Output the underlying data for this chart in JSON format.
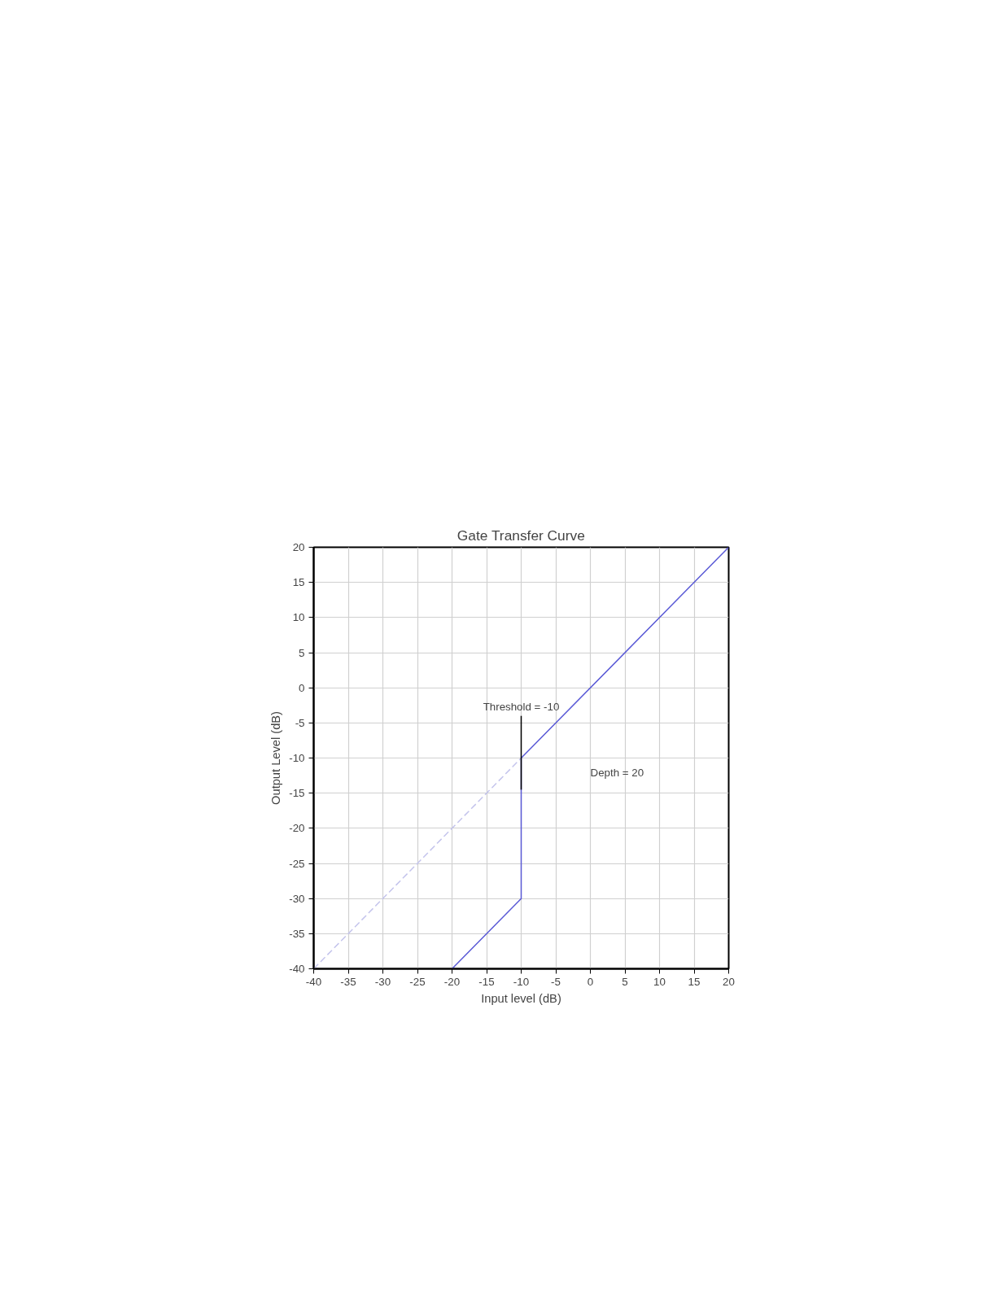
{
  "chart_data": {
    "type": "line",
    "title": "Gate Transfer Curve",
    "xlabel": "Input level (dB)",
    "ylabel": "Output Level (dB)",
    "xlim": [
      -40,
      20
    ],
    "ylim": [
      -40,
      20
    ],
    "xticks": [
      -40,
      -35,
      -30,
      -25,
      -20,
      -15,
      -10,
      -5,
      0,
      5,
      10,
      15,
      20
    ],
    "yticks": [
      -40,
      -35,
      -30,
      -25,
      -20,
      -15,
      -10,
      -5,
      0,
      5,
      10,
      15,
      20
    ],
    "grid": true,
    "marker": "none",
    "series": [
      {
        "color": "#c4c4ec",
        "line_style": "dashed",
        "x": [
          -40,
          -10
        ],
        "values": [
          -40,
          -10
        ]
      },
      {
        "color": "#5a5ad6",
        "line_style": "solid",
        "x": [
          -20,
          -10,
          -10,
          20
        ],
        "values": [
          -40,
          -30,
          -10,
          20
        ]
      },
      {
        "color": "#000000",
        "line_style": "solid",
        "x": [
          -10,
          -10
        ],
        "values": [
          -4,
          -14.5
        ]
      }
    ],
    "annotations": [
      {
        "text": "Threshold = -10",
        "x": -10,
        "y": -4
      },
      "Depth = 20"
    ]
  }
}
